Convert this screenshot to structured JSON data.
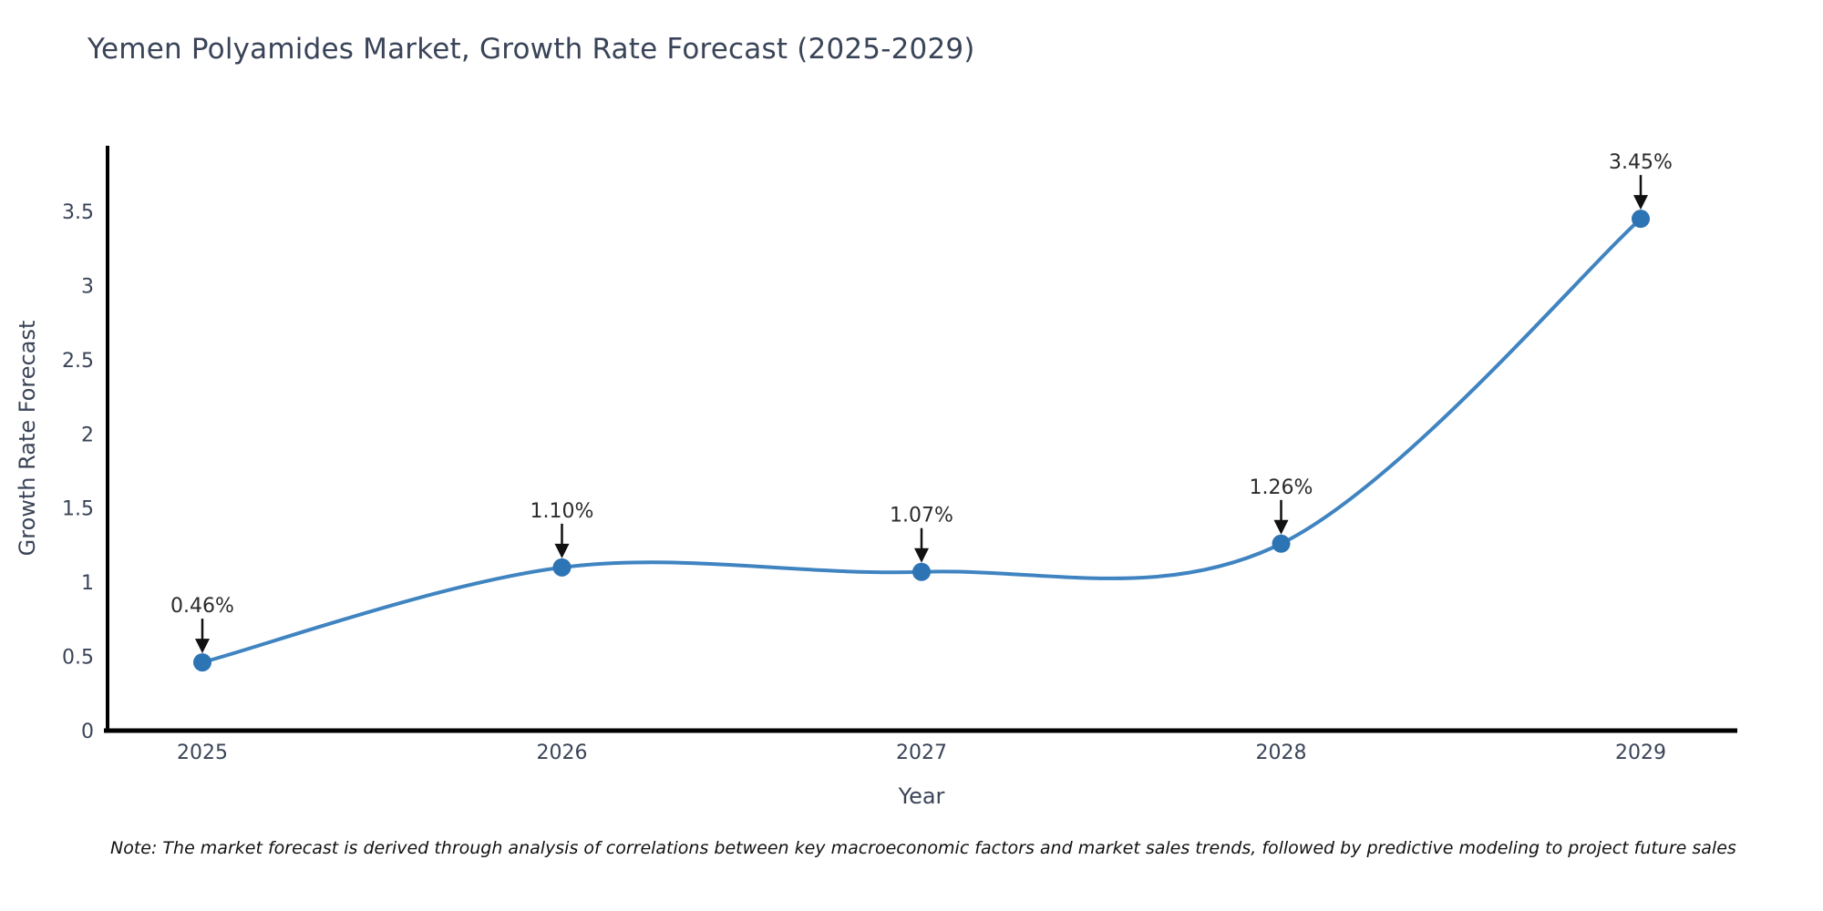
{
  "title": "Yemen Polyamides Market, Growth Rate Forecast (2025-2029)",
  "note": "Note: The market forecast is derived through analysis of correlations between key macroeconomic factors and market sales trends, followed by predictive modeling to project future sales",
  "chart_data": {
    "type": "line",
    "categories": [
      "2025",
      "2026",
      "2027",
      "2028",
      "2029"
    ],
    "series": [
      {
        "name": "Growth Rate Forecast",
        "values": [
          0.46,
          1.1,
          1.07,
          1.26,
          3.45
        ]
      }
    ],
    "point_labels": [
      "0.46%",
      "1.10%",
      "1.07%",
      "1.26%",
      "3.45%"
    ],
    "title": "Yemen Polyamides Market, Growth Rate Forecast (2025-2029)",
    "xlabel": "Year",
    "ylabel": "Growth Rate Forecast",
    "yticks": [
      0,
      0.5,
      1,
      1.5,
      2,
      2.5,
      3,
      3.5
    ],
    "ylim": [
      0,
      3.95
    ],
    "grid": false,
    "legend": "none",
    "colors": {
      "line": "#3f84c1",
      "marker": "#2d74b4",
      "axis": "#000000",
      "annotation": "#111111",
      "text": "#3a4458"
    }
  }
}
